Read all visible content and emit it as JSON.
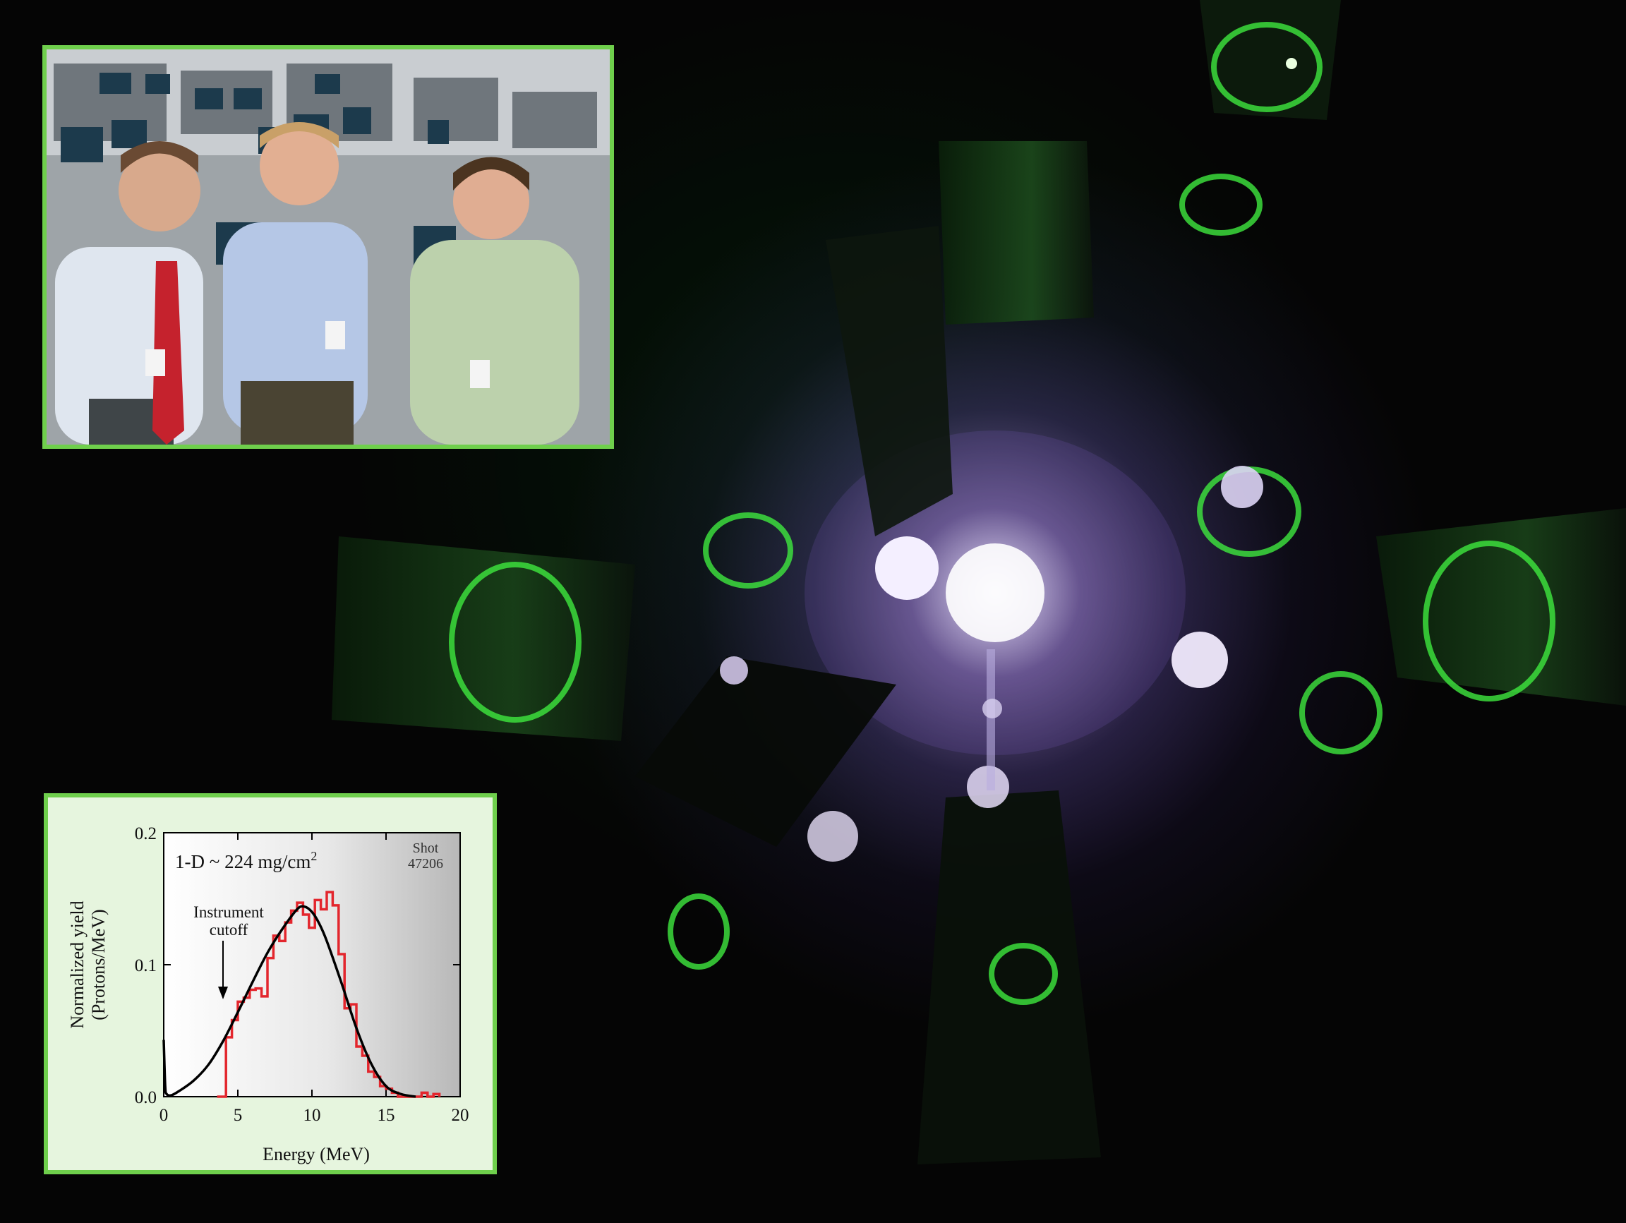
{
  "colors": {
    "inset_border": "#6fcf4c",
    "inset_background": "#e6f5de",
    "measured_line": "#e3262d",
    "model_line": "#000000"
  },
  "photo_inset": {
    "subject": "three men standing in a control room"
  },
  "chart_data": {
    "type": "line",
    "title": "1-D ~ 224 mg/cm",
    "title_superscript": "2",
    "annotation_shot": [
      "Shot",
      "47206"
    ],
    "annotation_cutoff": [
      "Instrument",
      "cutoff"
    ],
    "xlabel": "Energy (MeV)",
    "ylabel": [
      "Normalized yield",
      "(Protons/MeV)"
    ],
    "xlim": [
      0,
      20
    ],
    "ylim": [
      0,
      0.2
    ],
    "xticks": [
      0,
      5,
      10,
      15,
      20
    ],
    "yticks": [
      0.0,
      0.1,
      0.2
    ],
    "xtick_labels": [
      "0",
      "5",
      "10",
      "15",
      "20"
    ],
    "ytick_labels": [
      "0.0",
      "0.1",
      "0.2"
    ],
    "cutoff_energy": 4,
    "series": [
      {
        "style": "step",
        "color": "#e3262d",
        "x": [
          3.6,
          4.2,
          4.6,
          5.0,
          5.4,
          5.8,
          6.2,
          6.6,
          7.0,
          7.4,
          7.8,
          8.2,
          8.6,
          9.0,
          9.4,
          9.8,
          10.2,
          10.6,
          11.0,
          11.4,
          11.8,
          12.2,
          12.6,
          13.0,
          13.4,
          13.8,
          14.2,
          14.6,
          15.0,
          15.4,
          15.8,
          16.2,
          16.6,
          17.0,
          17.4,
          17.8,
          18.2,
          18.6
        ],
        "y": [
          0.0,
          0.045,
          0.058,
          0.072,
          0.075,
          0.081,
          0.082,
          0.076,
          0.105,
          0.122,
          0.118,
          0.132,
          0.141,
          0.147,
          0.138,
          0.128,
          0.149,
          0.142,
          0.155,
          0.145,
          0.108,
          0.067,
          0.07,
          0.038,
          0.031,
          0.019,
          0.015,
          0.008,
          0.006,
          0.003,
          0.0,
          0.0,
          0.0,
          0.0,
          0.003,
          0.0,
          0.002,
          0.0
        ]
      },
      {
        "style": "smooth",
        "color": "#000000",
        "x": [
          0.0,
          0.1,
          0.2,
          0.5,
          1.0,
          2.0,
          3.0,
          4.0,
          5.0,
          6.0,
          7.0,
          8.0,
          9.0,
          9.5,
          10.0,
          10.5,
          11.0,
          12.0,
          13.0,
          14.0,
          15.0,
          16.0,
          17.0
        ],
        "y": [
          0.043,
          0.008,
          0.002,
          0.001,
          0.004,
          0.012,
          0.024,
          0.042,
          0.064,
          0.087,
          0.109,
          0.127,
          0.142,
          0.144,
          0.14,
          0.131,
          0.118,
          0.086,
          0.052,
          0.025,
          0.008,
          0.002,
          0.0
        ]
      }
    ]
  }
}
